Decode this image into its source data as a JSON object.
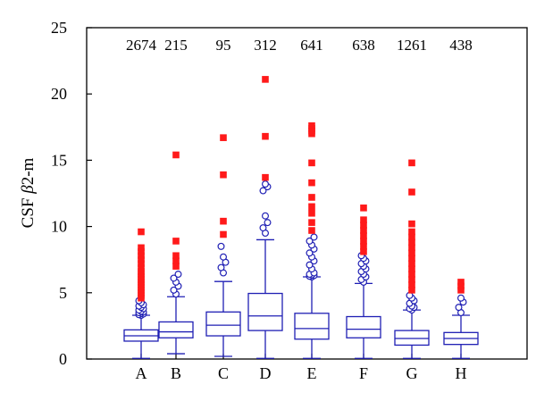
{
  "chart_data": {
    "type": "box",
    "ylabel_prefix": "CSF ",
    "ylabel_symbol": "β",
    "ylabel_suffix": "2-m",
    "ylim": [
      0,
      25
    ],
    "yticks": [
      0,
      5,
      10,
      15,
      20,
      25
    ],
    "grid": false,
    "colors": {
      "box": "#1f1fb4",
      "outlier_open": "#1f1fb4",
      "outlier_extreme": "#ff1a1a"
    },
    "categories": [
      "A",
      "B",
      "C",
      "D",
      "E",
      "F",
      "G",
      "H"
    ],
    "counts": [
      "2674",
      "215",
      "95",
      "312",
      "641",
      "638",
      "1261",
      "438"
    ],
    "boxes": [
      {
        "category": "A",
        "whisker_low": 0.05,
        "q1": 1.35,
        "median": 1.75,
        "q3": 2.2,
        "whisker_high": 3.3,
        "open_outliers": [
          3.3,
          3.35,
          3.4,
          3.45,
          3.5,
          3.55,
          3.6,
          3.7,
          3.8,
          3.9,
          4.0,
          4.1,
          4.25,
          4.4
        ],
        "extreme_outliers": [
          4.6,
          4.8,
          5.0,
          5.2,
          5.4,
          5.6,
          5.8,
          6.0,
          6.2,
          6.4,
          6.6,
          6.9,
          7.2,
          7.5,
          7.8,
          8.1,
          8.4,
          9.6
        ]
      },
      {
        "category": "B",
        "whisker_low": 0.4,
        "q1": 1.6,
        "median": 2.05,
        "q3": 2.8,
        "whisker_high": 4.7,
        "open_outliers": [
          4.9,
          5.2,
          5.5,
          5.8,
          6.1,
          6.4
        ],
        "extreme_outliers": [
          7.0,
          7.4,
          7.8,
          8.9,
          15.4
        ]
      },
      {
        "category": "C",
        "whisker_low": 0.2,
        "q1": 1.75,
        "median": 2.55,
        "q3": 3.55,
        "whisker_high": 5.85,
        "open_outliers": [
          6.5,
          6.9,
          7.3,
          7.7,
          8.5
        ],
        "extreme_outliers": [
          9.4,
          10.4,
          13.9,
          16.7
        ]
      },
      {
        "category": "D",
        "whisker_low": 0.05,
        "q1": 2.15,
        "median": 3.25,
        "q3": 4.95,
        "whisker_high": 9.0,
        "open_outliers": [
          9.5,
          9.9,
          10.3,
          10.8,
          12.7,
          13.0,
          13.2
        ],
        "extreme_outliers": [
          13.7,
          16.8,
          21.1
        ]
      },
      {
        "category": "E",
        "whisker_low": 0.05,
        "q1": 1.5,
        "median": 2.3,
        "q3": 3.45,
        "whisker_high": 6.2,
        "open_outliers": [
          6.2,
          6.25,
          6.3,
          6.35,
          6.4,
          6.5,
          6.8,
          7.1,
          7.4,
          7.7,
          8.0,
          8.3,
          8.6,
          8.9,
          9.2
        ],
        "extreme_outliers": [
          9.7,
          10.3,
          11.0,
          11.5,
          12.2,
          13.3,
          14.8,
          17.0,
          17.2,
          17.4,
          17.6
        ]
      },
      {
        "category": "F",
        "whisker_low": 0.05,
        "q1": 1.6,
        "median": 2.25,
        "q3": 3.2,
        "whisker_high": 5.7,
        "open_outliers": [
          5.8,
          6.0,
          6.2,
          6.4,
          6.6,
          6.8,
          7.0,
          7.2,
          7.4,
          7.6,
          7.8
        ],
        "extreme_outliers": [
          8.1,
          8.5,
          8.9,
          9.3,
          9.7,
          10.1,
          10.5,
          11.4
        ]
      },
      {
        "category": "G",
        "whisker_low": 0.05,
        "q1": 1.05,
        "median": 1.55,
        "q3": 2.15,
        "whisker_high": 3.7,
        "open_outliers": [
          3.7,
          3.8,
          3.9,
          4.0,
          4.2,
          4.4,
          4.6,
          4.8
        ],
        "extreme_outliers": [
          5.2,
          5.6,
          6.0,
          6.4,
          6.8,
          7.2,
          7.6,
          8.0,
          8.4,
          8.8,
          9.2,
          9.6,
          10.2,
          12.6,
          14.8
        ]
      },
      {
        "category": "H",
        "whisker_low": 0.05,
        "q1": 1.1,
        "median": 1.55,
        "q3": 2.0,
        "whisker_high": 3.3,
        "open_outliers": [
          3.5,
          3.9,
          4.3,
          4.6
        ],
        "extreme_outliers": [
          5.2,
          5.5,
          5.8
        ]
      }
    ]
  }
}
